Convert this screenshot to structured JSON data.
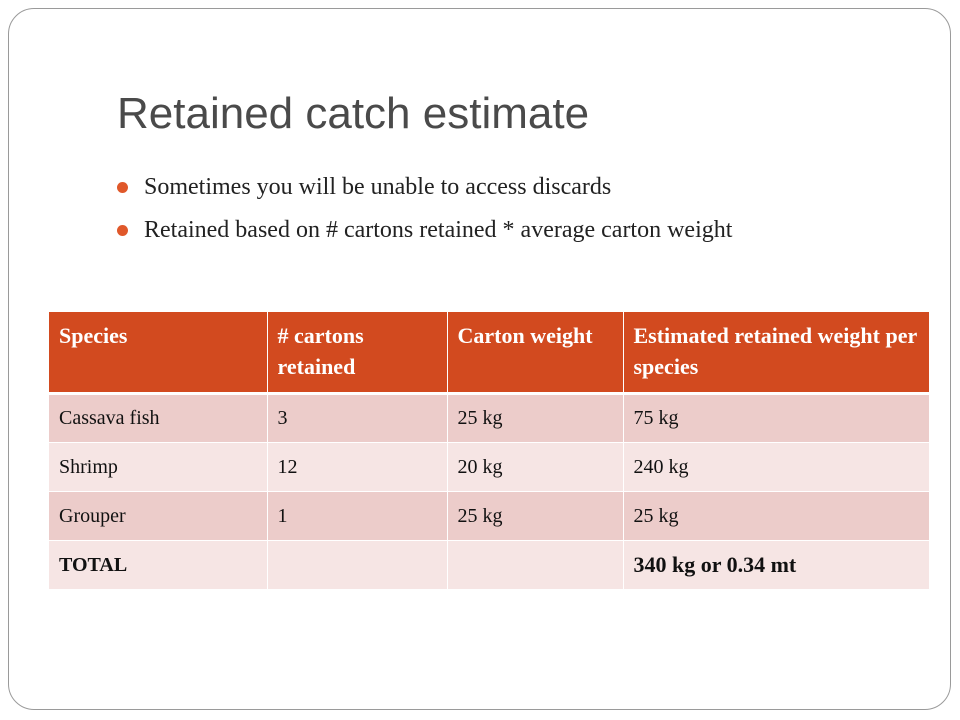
{
  "slide": {
    "title": "Retained catch estimate",
    "bullets": [
      "Sometimes you will be unable to access discards",
      "Retained based on # cartons retained * average carton weight"
    ],
    "accent_color": "#e0582a",
    "table_header_color": "#d24a1f"
  },
  "table": {
    "headers": [
      "Species",
      "# cartons retained",
      "Carton weight",
      "Estimated retained weight per species"
    ],
    "rows": [
      [
        "Cassava fish",
        "3",
        "25 kg",
        "75 kg"
      ],
      [
        "Shrimp",
        "12",
        "20 kg",
        "240 kg"
      ],
      [
        "Grouper",
        "1",
        "25 kg",
        "25 kg"
      ],
      [
        "TOTAL",
        "",
        "",
        "340 kg or 0.34 mt"
      ]
    ]
  },
  "chart_data": {
    "type": "table",
    "columns": [
      "Species",
      "# cartons retained",
      "Carton weight",
      "Estimated retained weight per species"
    ],
    "rows": [
      [
        "Cassava fish",
        3,
        "25 kg",
        "75 kg"
      ],
      [
        "Shrimp",
        12,
        "20 kg",
        "240 kg"
      ],
      [
        "Grouper",
        1,
        "25 kg",
        "25 kg"
      ],
      [
        "TOTAL",
        null,
        null,
        "340 kg or 0.34 mt"
      ]
    ]
  }
}
